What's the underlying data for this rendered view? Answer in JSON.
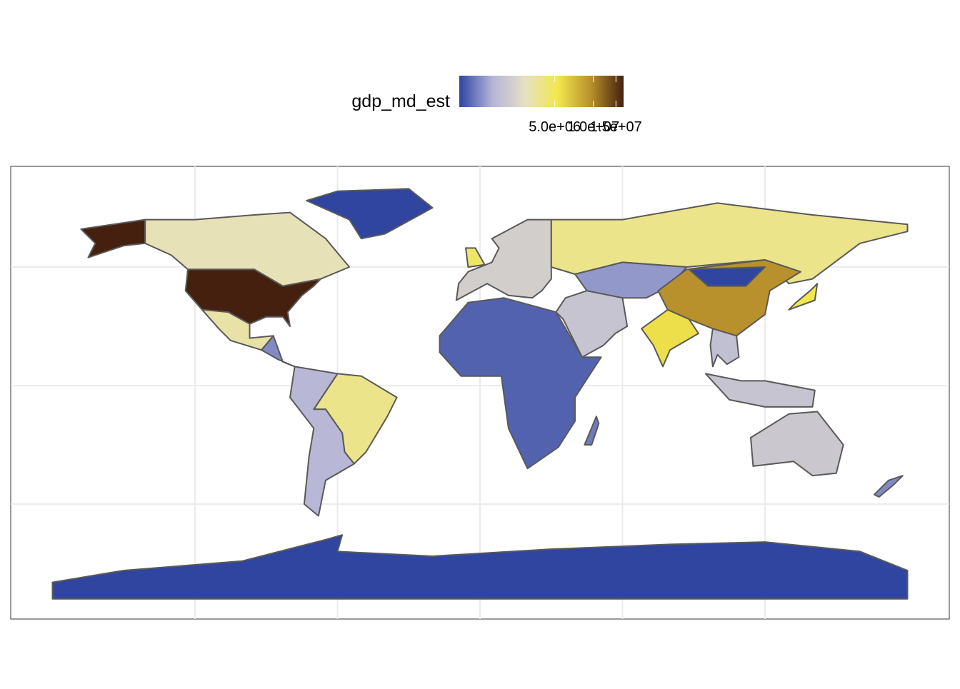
{
  "chart_data": {
    "type": "choropleth",
    "legend_title": "gdp_md_est",
    "scale": "log",
    "lim": [
      900000,
      17200000
    ],
    "ticks": [
      {
        "value": 5000000,
        "label": "5.0e+06"
      },
      {
        "value": 10000000,
        "label": "1.0e+07"
      },
      {
        "value": 15000000,
        "label": "1.5e+07"
      }
    ],
    "palette": [
      "#2f45a0",
      "#b4b4d8",
      "#e6e0c4",
      "#f2e84c",
      "#b8902c",
      "#45200f"
    ],
    "border_color": "#595959",
    "grid": true,
    "values": [
      17200000,
      3100000,
      3400000,
      1300000,
      900000,
      3900000,
      1700000,
      1050000,
      1200000,
      2300000,
      4600000,
      3900000,
      2000000,
      1400000,
      9500000,
      900000,
      5600000,
      1900000,
      2000000,
      5300000,
      2100000,
      1300000,
      900000
    ]
  }
}
